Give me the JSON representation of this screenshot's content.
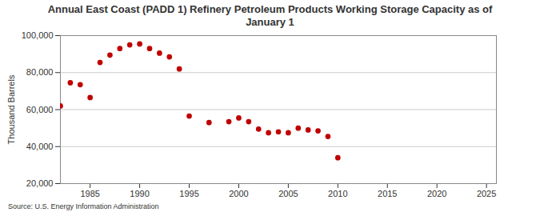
{
  "chart_data": {
    "type": "scatter",
    "title": "Annual East Coast (PADD 1) Refinery Petroleum Products Working Storage Capacity as of January 1",
    "caption": "Source: U.S. Energy Information Administration",
    "y_label": "Thousand Barrels",
    "x": [
      1982,
      1983,
      1984,
      1985,
      1986,
      1987,
      1988,
      1989,
      1990,
      1991,
      1992,
      1993,
      1994,
      1995,
      1997,
      1999,
      2000,
      2001,
      2002,
      2003,
      2004,
      2005,
      2006,
      2007,
      2008,
      2009,
      2010
    ],
    "values": [
      62000,
      74500,
      73500,
      66500,
      85500,
      89500,
      93000,
      95000,
      95500,
      93000,
      90500,
      88500,
      82000,
      56500,
      53000,
      53500,
      55500,
      53500,
      49500,
      47500,
      48000,
      47500,
      50000,
      49000,
      48500,
      45500,
      34000
    ],
    "color": "#c00000",
    "marker": "circle",
    "xlim": [
      1982,
      2026
    ],
    "xticks": [
      1985,
      1990,
      1995,
      2000,
      2005,
      2010,
      2015,
      2020,
      2025
    ],
    "ylim": [
      20000,
      100000
    ],
    "yticks": [
      {
        "value": 20000,
        "label": "20,000"
      },
      {
        "value": 40000,
        "label": "40,000"
      },
      {
        "value": 60000,
        "label": "60,000"
      },
      {
        "value": 80000,
        "label": "80,000"
      },
      {
        "value": 100000,
        "label": "100,000"
      }
    ],
    "grid": true
  }
}
